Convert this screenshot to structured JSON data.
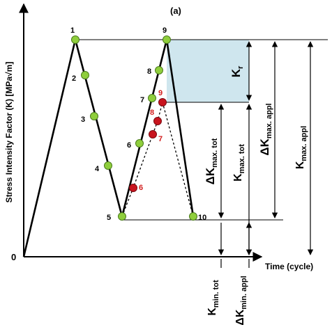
{
  "figure": {
    "panel_label": "(a)",
    "y_axis_label": "Stress Intensity Factor (K) [MPa√m]",
    "x_axis_label": "Time (cycle)",
    "origin_label": "0"
  },
  "points": {
    "green": [
      "1",
      "2",
      "3",
      "4",
      "5",
      "6",
      "7",
      "8",
      "9",
      "10"
    ],
    "red": [
      "6",
      "7",
      "8",
      "9"
    ]
  },
  "annotations": {
    "kr": "K",
    "kr_sub": "r",
    "dk_max_tot": "ΔK",
    "dk_max_tot_sub": "max. tot",
    "k_max_tot": "K",
    "k_max_tot_sub": "max. tot",
    "dk_max_appl": "ΔK",
    "dk_max_appl_sub": "max. appl",
    "k_max_appl": "K",
    "k_max_appl_sub": "max. appl",
    "k_min_tot": "K",
    "k_min_tot_sub": "min. tot",
    "dk_min_appl": "ΔK",
    "dk_min_appl_sub": "min. appl"
  },
  "colors": {
    "green_point": "#8fce3c",
    "red_point": "#c8141e",
    "red_label": "#d21e1e",
    "shade": "#cfe6ee"
  }
}
